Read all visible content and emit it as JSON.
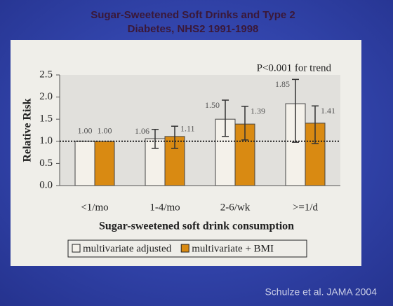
{
  "chart_data": {
    "type": "bar",
    "title": [
      "Sugar-Sweetened Soft Drinks and Type 2",
      "Diabetes, NHS2 1991-1998"
    ],
    "annotation": "P<0.001 for trend",
    "y_label": "Relative Risk",
    "x_label": "Sugar-sweetened soft drink consumption",
    "citation": "Schulze et al. JAMA 2004",
    "categories": [
      "<1/mo",
      "1-4/mo",
      "2-6/wk",
      ">=1/d"
    ],
    "series": [
      {
        "name": "multivariate adjusted",
        "color": "#f4f1ea",
        "values": [
          1.0,
          1.06,
          1.5,
          1.85
        ],
        "value_labels": [
          "1.00",
          "1.06",
          "1.50",
          "1.85"
        ],
        "ci_low": [
          null,
          0.84,
          1.11,
          0.98
        ],
        "ci_high": [
          null,
          1.27,
          1.93,
          2.4
        ]
      },
      {
        "name": "multivariate + BMI",
        "color": "#d98a12",
        "values": [
          1.0,
          1.11,
          1.39,
          1.41
        ],
        "value_labels": [
          "1.00",
          "1.11",
          "1.39",
          "1.41"
        ],
        "ci_low": [
          null,
          0.84,
          1.03,
          0.95
        ],
        "ci_high": [
          null,
          1.34,
          1.79,
          1.8
        ]
      }
    ],
    "ylim": [
      0,
      2.5
    ],
    "yticks": [
      {
        "value": 0,
        "label": "0.0"
      },
      {
        "value": 0.5,
        "label": "0.5"
      },
      {
        "value": 1,
        "label": "1.0"
      },
      {
        "value": 1.5,
        "label": "1.5"
      },
      {
        "value": 2,
        "label": "2.0"
      },
      {
        "value": 2.5,
        "label": "2.5"
      }
    ],
    "reference_line": 1,
    "legend": "bottom"
  }
}
